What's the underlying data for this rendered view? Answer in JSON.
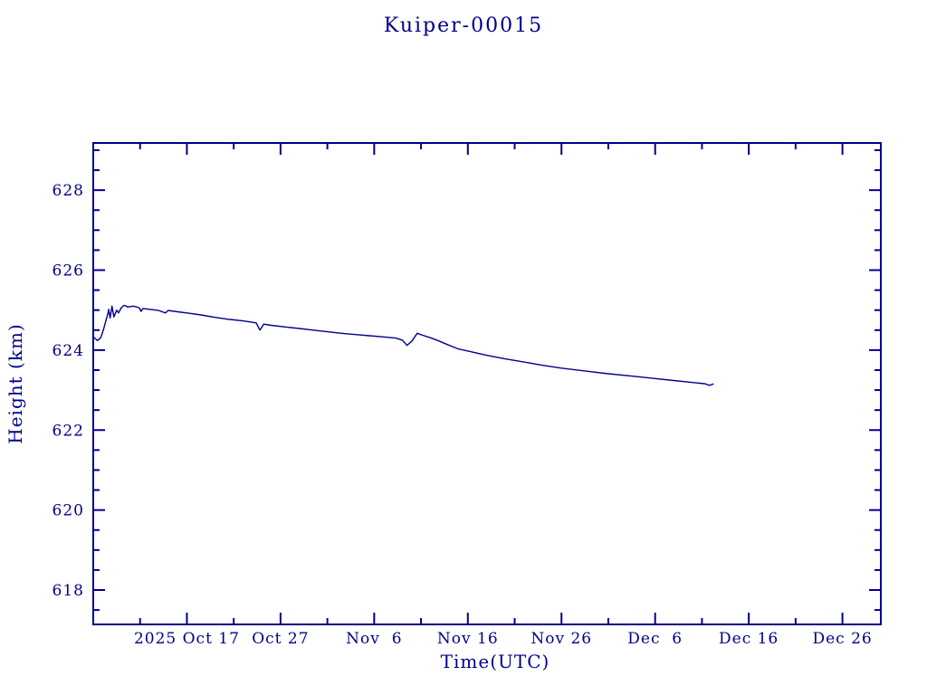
{
  "page": {
    "background": "#ffffff",
    "ink_color": "#00008b"
  },
  "chart_data": {
    "type": "line",
    "title": "Kuiper-00015",
    "xlabel": "Time(UTC)",
    "ylabel": "Height (km)",
    "line_color": "#00008b",
    "axis_color": "#00008b",
    "background": "#ffffff",
    "grid": false,
    "legend": "none",
    "x_epoch_label": "2025 Oct 7 = day 0",
    "xlim_days": [
      0,
      84.1
    ],
    "ylim": [
      617.14,
      629.18
    ],
    "x_major_ticks": [
      {
        "day": 10,
        "label": "2025 Oct 17"
      },
      {
        "day": 20,
        "label": "Oct 27"
      },
      {
        "day": 30,
        "label": "Nov  6"
      },
      {
        "day": 40,
        "label": "Nov 16"
      },
      {
        "day": 50,
        "label": "Nov 26"
      },
      {
        "day": 60,
        "label": "Dec  6"
      },
      {
        "day": 70,
        "label": "Dec 16"
      },
      {
        "day": 80,
        "label": "Dec 26"
      }
    ],
    "x_minor_ticks_days": [
      5,
      15,
      25,
      35,
      45,
      55,
      65,
      75
    ],
    "y_major_ticks": [
      {
        "value": 618,
        "label": "618"
      },
      {
        "value": 620,
        "label": "620"
      },
      {
        "value": 622,
        "label": "622"
      },
      {
        "value": 624,
        "label": "624"
      },
      {
        "value": 626,
        "label": "626"
      },
      {
        "value": 628,
        "label": "628"
      }
    ],
    "y_minor_step": 0.5,
    "series": [
      {
        "name": "height",
        "x_days": [
          0.0,
          0.2,
          0.45,
          0.8,
          1.1,
          1.35,
          1.55,
          1.65,
          1.8,
          2.0,
          2.2,
          2.5,
          2.7,
          3.0,
          3.3,
          3.7,
          4.3,
          4.9,
          5.1,
          5.3,
          6.0,
          7.0,
          7.7,
          8.0,
          9.0,
          10.0,
          11.5,
          13.0,
          14.5,
          16.0,
          17.4,
          17.8,
          18.2,
          19.0,
          20.5,
          22.0,
          23.5,
          25.0,
          26.5,
          28.0,
          29.5,
          31.0,
          32.3,
          33.0,
          33.5,
          34.0,
          34.6,
          35.2,
          36.0,
          36.8,
          37.8,
          39.0,
          40.5,
          42.0,
          44.0,
          46.0,
          48.0,
          50.0,
          52.5,
          55.0,
          57.5,
          60.0,
          62.0,
          64.0,
          65.3,
          65.8,
          66.2
        ],
        "y_km": [
          624.33,
          624.29,
          624.24,
          624.31,
          624.52,
          624.74,
          624.9,
          625.02,
          624.8,
          625.1,
          624.83,
          625.0,
          624.93,
          625.06,
          625.12,
          625.08,
          625.1,
          625.06,
          624.97,
          625.04,
          625.02,
          624.99,
          624.93,
          624.99,
          624.96,
          624.93,
          624.88,
          624.82,
          624.77,
          624.73,
          624.68,
          624.5,
          624.65,
          624.62,
          624.58,
          624.54,
          624.5,
          624.46,
          624.42,
          624.39,
          624.36,
          624.33,
          624.3,
          624.25,
          624.12,
          624.22,
          624.42,
          624.37,
          624.31,
          624.24,
          624.14,
          624.03,
          623.95,
          623.87,
          623.78,
          623.7,
          623.62,
          623.55,
          623.48,
          623.41,
          623.35,
          623.29,
          623.24,
          623.19,
          623.16,
          623.12,
          623.15
        ]
      }
    ]
  }
}
